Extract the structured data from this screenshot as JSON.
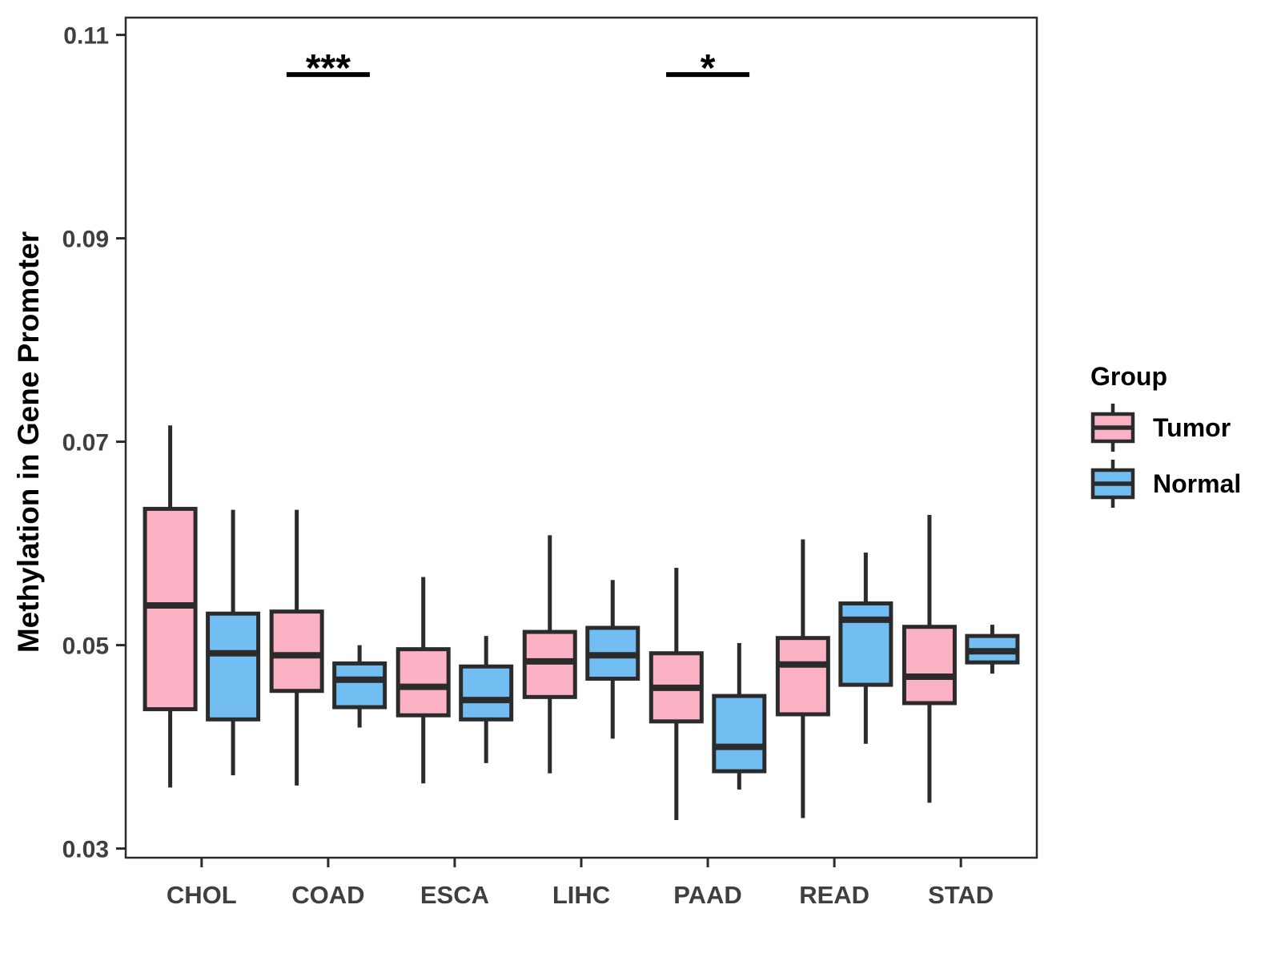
{
  "figure": {
    "background": "#FFFFFF"
  },
  "chart_data": {
    "type": "boxplot",
    "title": "",
    "xlabel": "",
    "ylabel": "Methylation in Gene Promoter",
    "categories": [
      "CHOL",
      "COAD",
      "ESCA",
      "LIHC",
      "PAAD",
      "READ",
      "STAD"
    ],
    "ylim": [
      0.0291,
      0.1117
    ],
    "yticks": [
      0.03,
      0.05,
      0.07,
      0.09,
      0.11
    ],
    "ytick_labels": [
      "0.03",
      "0.05",
      "0.07",
      "0.09",
      "0.11"
    ],
    "grid": false,
    "legend": {
      "title": "Group",
      "position": "right"
    },
    "series": [
      {
        "name": "Tumor",
        "color": "#FAB2C4",
        "boxes": [
          {
            "category": "CHOL",
            "whisker_low": 0.036,
            "q1": 0.0437,
            "median": 0.0539,
            "q3": 0.0634,
            "whisker_high": 0.0716
          },
          {
            "category": "COAD",
            "whisker_low": 0.0362,
            "q1": 0.0455,
            "median": 0.049,
            "q3": 0.0533,
            "whisker_high": 0.0633
          },
          {
            "category": "ESCA",
            "whisker_low": 0.0364,
            "q1": 0.0431,
            "median": 0.0459,
            "q3": 0.0496,
            "whisker_high": 0.0567
          },
          {
            "category": "LIHC",
            "whisker_low": 0.0374,
            "q1": 0.0449,
            "median": 0.0484,
            "q3": 0.0513,
            "whisker_high": 0.0608
          },
          {
            "category": "PAAD",
            "whisker_low": 0.0328,
            "q1": 0.0425,
            "median": 0.0458,
            "q3": 0.0492,
            "whisker_high": 0.0576
          },
          {
            "category": "READ",
            "whisker_low": 0.033,
            "q1": 0.0432,
            "median": 0.0481,
            "q3": 0.0507,
            "whisker_high": 0.0604
          },
          {
            "category": "STAD",
            "whisker_low": 0.0345,
            "q1": 0.0443,
            "median": 0.0469,
            "q3": 0.0518,
            "whisker_high": 0.0628
          }
        ]
      },
      {
        "name": "Normal",
        "color": "#72BEF2",
        "boxes": [
          {
            "category": "CHOL",
            "whisker_low": 0.0372,
            "q1": 0.0427,
            "median": 0.0492,
            "q3": 0.0531,
            "whisker_high": 0.0633
          },
          {
            "category": "COAD",
            "whisker_low": 0.0419,
            "q1": 0.0439,
            "median": 0.0466,
            "q3": 0.0482,
            "whisker_high": 0.05
          },
          {
            "category": "ESCA",
            "whisker_low": 0.0384,
            "q1": 0.0427,
            "median": 0.0446,
            "q3": 0.0479,
            "whisker_high": 0.0509
          },
          {
            "category": "LIHC",
            "whisker_low": 0.0408,
            "q1": 0.0467,
            "median": 0.049,
            "q3": 0.0517,
            "whisker_high": 0.0564
          },
          {
            "category": "PAAD",
            "whisker_low": 0.0358,
            "q1": 0.0376,
            "median": 0.04,
            "q3": 0.045,
            "whisker_high": 0.0502
          },
          {
            "category": "READ",
            "whisker_low": 0.0403,
            "q1": 0.0461,
            "median": 0.0525,
            "q3": 0.0541,
            "whisker_high": 0.0591
          },
          {
            "category": "STAD",
            "whisker_low": 0.0472,
            "q1": 0.0483,
            "median": 0.0494,
            "q3": 0.0509,
            "whisker_high": 0.052
          }
        ]
      }
    ],
    "annotations": [
      {
        "category": "COAD",
        "label": "***",
        "y": 0.1061
      },
      {
        "category": "PAAD",
        "label": "*",
        "y": 0.1061
      }
    ],
    "style": {
      "box_stroke": "#2B2B2B",
      "axis_text_color": "#3F3F3F",
      "axis_title_color": "#000000",
      "panel_border_color": "#2B2B2B"
    }
  }
}
